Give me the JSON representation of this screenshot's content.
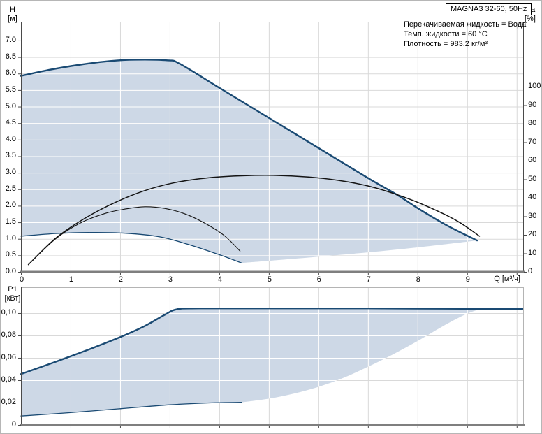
{
  "header": {
    "title_box": "MAGNA3 32-60, 50Hz",
    "info_lines": [
      "Перекачиваемая жидкость = Вода",
      "Темп. жидкости = 60 °C",
      "Плотность = 983.2 кг/м³"
    ]
  },
  "colors": {
    "curve_blue": "#1a4a73",
    "fill_blue": "#cdd8e6",
    "curve_black": "#141414",
    "grid_gray": "#d9d9d9",
    "grid_white": "#ffffff",
    "axis_dark": "#4a4a4a",
    "axis_thick": "#7f7f7f",
    "frame_light": "#b4b4b4"
  },
  "chart_data": [
    {
      "type": "area",
      "id": "head",
      "title": "MAGNA3 32-60, 50Hz",
      "xlabel": "Q [м³/ч]",
      "ylabel_left_lines": [
        "H",
        "[м]"
      ],
      "ylabel_right_lines": [
        "eta",
        "[%]"
      ],
      "xlim": [
        0,
        10.13
      ],
      "ylim": [
        0,
        7.57
      ],
      "ylim_right": [
        0,
        135.1
      ],
      "grid": true,
      "x_ticks": [
        {
          "v": 0,
          "l": "0"
        },
        {
          "v": 1,
          "l": "1"
        },
        {
          "v": 2,
          "l": "2"
        },
        {
          "v": 3,
          "l": "3"
        },
        {
          "v": 4,
          "l": "4"
        },
        {
          "v": 5,
          "l": "5"
        },
        {
          "v": 6,
          "l": "6"
        },
        {
          "v": 7,
          "l": "7"
        },
        {
          "v": 8,
          "l": "8"
        },
        {
          "v": 9,
          "l": "9"
        },
        {
          "v": 10,
          "l": ""
        }
      ],
      "y_left_ticks": [
        {
          "v": 0,
          "l": "0.0"
        },
        {
          "v": 0.5,
          "l": "0.5"
        },
        {
          "v": 1,
          "l": "1.0"
        },
        {
          "v": 1.5,
          "l": "1.5"
        },
        {
          "v": 2,
          "l": "2.0"
        },
        {
          "v": 2.5,
          "l": "2.5"
        },
        {
          "v": 3,
          "l": "3.0"
        },
        {
          "v": 3.5,
          "l": "3.5"
        },
        {
          "v": 4,
          "l": "4.0"
        },
        {
          "v": 4.5,
          "l": "4.5"
        },
        {
          "v": 5,
          "l": "5.0"
        },
        {
          "v": 5.5,
          "l": "5.5"
        },
        {
          "v": 6,
          "l": "6.0"
        },
        {
          "v": 6.5,
          "l": "6.5"
        },
        {
          "v": 7,
          "l": "7.0"
        }
      ],
      "y_right_ticks": [
        {
          "v": 0,
          "l": "0"
        },
        {
          "v": 10,
          "l": "10"
        },
        {
          "v": 20,
          "l": "20"
        },
        {
          "v": 30,
          "l": "30"
        },
        {
          "v": 40,
          "l": "40"
        },
        {
          "v": 50,
          "l": "50"
        },
        {
          "v": 60,
          "l": "60"
        },
        {
          "v": 70,
          "l": "70"
        },
        {
          "v": 80,
          "l": "80"
        },
        {
          "v": 90,
          "l": "90"
        },
        {
          "v": 100,
          "l": "100"
        }
      ],
      "series": [
        {
          "name": "max-speed-head-curve",
          "color_key": "curve_blue",
          "width": 2.4,
          "smooth": true,
          "points": [
            [
              0,
              5.93
            ],
            [
              0.6,
              6.12
            ],
            [
              1.2,
              6.27
            ],
            [
              1.8,
              6.38
            ],
            [
              2.3,
              6.42
            ],
            [
              2.95,
              6.4
            ],
            [
              3.2,
              6.3
            ],
            [
              4.0,
              5.57
            ],
            [
              5.0,
              4.66
            ],
            [
              6.0,
              3.75
            ],
            [
              7.0,
              2.84
            ],
            [
              7.6,
              2.32
            ],
            [
              8.0,
              1.93
            ],
            [
              8.6,
              1.4
            ],
            [
              9.2,
              0.95
            ]
          ]
        },
        {
          "name": "min-speed-head-curve",
          "color_key": "curve_blue",
          "width": 1.3,
          "smooth": true,
          "points": [
            [
              0,
              1.08
            ],
            [
              0.7,
              1.16
            ],
            [
              1.4,
              1.19
            ],
            [
              2.1,
              1.17
            ],
            [
              2.8,
              1.06
            ],
            [
              3.4,
              0.82
            ],
            [
              4.0,
              0.52
            ],
            [
              4.45,
              0.27
            ]
          ]
        },
        {
          "name": "eta-curve-max-speed",
          "color_key": "curve_black",
          "width": 1.5,
          "smooth": true,
          "points": [
            [
              0.15,
              0.22
            ],
            [
              0.7,
              1.02
            ],
            [
              1.3,
              1.63
            ],
            [
              1.9,
              2.1
            ],
            [
              2.5,
              2.46
            ],
            [
              3.1,
              2.7
            ],
            [
              3.8,
              2.85
            ],
            [
              4.5,
              2.91
            ],
            [
              5.1,
              2.92
            ],
            [
              5.8,
              2.87
            ],
            [
              6.4,
              2.77
            ],
            [
              7.0,
              2.6
            ],
            [
              7.6,
              2.33
            ],
            [
              8.2,
              1.98
            ],
            [
              8.8,
              1.54
            ],
            [
              9.25,
              1.08
            ]
          ]
        },
        {
          "name": "eta-curve-min-speed",
          "color_key": "curve_black",
          "width": 1.1,
          "smooth": true,
          "points": [
            [
              0.15,
              0.22
            ],
            [
              0.7,
              1.0
            ],
            [
              1.2,
              1.48
            ],
            [
              1.7,
              1.77
            ],
            [
              2.1,
              1.9
            ],
            [
              2.5,
              1.97
            ],
            [
              2.9,
              1.92
            ],
            [
              3.3,
              1.76
            ],
            [
              3.7,
              1.48
            ],
            [
              4.1,
              1.1
            ],
            [
              4.42,
              0.63
            ]
          ]
        }
      ],
      "area": {
        "name": "duty-range-envelope",
        "upper_points": [
          [
            0,
            5.93
          ],
          [
            0.6,
            6.12
          ],
          [
            1.2,
            6.27
          ],
          [
            1.8,
            6.38
          ],
          [
            2.3,
            6.42
          ],
          [
            2.95,
            6.4
          ],
          [
            3.2,
            6.3
          ],
          [
            4.0,
            5.57
          ],
          [
            5.0,
            4.66
          ],
          [
            6.0,
            3.75
          ],
          [
            7.0,
            2.84
          ],
          [
            7.6,
            2.32
          ],
          [
            8.0,
            1.93
          ],
          [
            8.6,
            1.4
          ],
          [
            9.2,
            0.95
          ]
        ],
        "right_points": [
          [
            4.45,
            0.27
          ],
          [
            5.2,
            0.36
          ],
          [
            6.0,
            0.46
          ],
          [
            7.0,
            0.59
          ],
          [
            8.0,
            0.74
          ],
          [
            9.2,
            0.95
          ]
        ],
        "lower_points": [
          [
            0,
            1.08
          ],
          [
            0.7,
            1.16
          ],
          [
            1.4,
            1.19
          ],
          [
            2.1,
            1.17
          ],
          [
            2.8,
            1.06
          ],
          [
            3.4,
            0.82
          ],
          [
            4.0,
            0.52
          ],
          [
            4.45,
            0.27
          ]
        ]
      }
    },
    {
      "type": "area",
      "id": "power",
      "xlabel": "",
      "ylabel_left_lines": [
        "P1",
        "[кВт]"
      ],
      "xlim": [
        0,
        10.13
      ],
      "ylim": [
        0,
        0.1231
      ],
      "grid": true,
      "x_ticks": [
        {
          "v": 1,
          "l": ""
        },
        {
          "v": 2,
          "l": ""
        },
        {
          "v": 3,
          "l": ""
        },
        {
          "v": 4,
          "l": ""
        },
        {
          "v": 5,
          "l": ""
        },
        {
          "v": 6,
          "l": ""
        },
        {
          "v": 7,
          "l": ""
        },
        {
          "v": 8,
          "l": ""
        },
        {
          "v": 9,
          "l": ""
        },
        {
          "v": 10,
          "l": ""
        }
      ],
      "y_left_ticks": [
        {
          "v": 0,
          "l": "0"
        },
        {
          "v": 0.02,
          "l": "0,02"
        },
        {
          "v": 0.04,
          "l": "0,04"
        },
        {
          "v": 0.06,
          "l": "0,06"
        },
        {
          "v": 0.08,
          "l": "0,08"
        },
        {
          "v": 0.1,
          "l": "0,10"
        }
      ],
      "series": [
        {
          "name": "p1-max-speed-curve",
          "color_key": "curve_blue",
          "width": 2.4,
          "smooth": true,
          "points": [
            [
              0,
              0.0455
            ],
            [
              0.7,
              0.0565
            ],
            [
              1.4,
              0.068
            ],
            [
              2.0,
              0.0785
            ],
            [
              2.5,
              0.0885
            ],
            [
              2.9,
              0.0985
            ],
            [
              3.15,
              0.1035
            ],
            [
              3.6,
              0.1042
            ],
            [
              5.0,
              0.1042
            ],
            [
              7.0,
              0.1042
            ],
            [
              9.3,
              0.1038
            ],
            [
              10.12,
              0.1038
            ]
          ]
        },
        {
          "name": "p1-min-speed-curve",
          "color_key": "curve_blue",
          "width": 1.3,
          "smooth": true,
          "points": [
            [
              0,
              0.008
            ],
            [
              1.0,
              0.011
            ],
            [
              2.0,
              0.0145
            ],
            [
              3.0,
              0.018
            ],
            [
              3.8,
              0.0197
            ],
            [
              4.45,
              0.0202
            ]
          ]
        }
      ],
      "area": {
        "name": "power-range-envelope",
        "upper_points": [
          [
            0,
            0.0455
          ],
          [
            0.7,
            0.0565
          ],
          [
            1.4,
            0.068
          ],
          [
            2.0,
            0.0785
          ],
          [
            2.5,
            0.0885
          ],
          [
            2.9,
            0.0985
          ],
          [
            3.15,
            0.1035
          ],
          [
            3.6,
            0.1042
          ],
          [
            5.0,
            0.1042
          ],
          [
            7.0,
            0.1042
          ],
          [
            9.3,
            0.1038
          ]
        ],
        "right_points": [
          [
            4.45,
            0.0202
          ],
          [
            5.0,
            0.0235
          ],
          [
            5.5,
            0.028
          ],
          [
            6.0,
            0.034
          ],
          [
            6.5,
            0.042
          ],
          [
            7.0,
            0.052
          ],
          [
            7.5,
            0.063
          ],
          [
            8.0,
            0.075
          ],
          [
            8.5,
            0.088
          ],
          [
            9.0,
            0.0995
          ],
          [
            9.3,
            0.1038
          ]
        ],
        "lower_points": [
          [
            0,
            0.008
          ],
          [
            1.0,
            0.011
          ],
          [
            2.0,
            0.0145
          ],
          [
            3.0,
            0.018
          ],
          [
            3.8,
            0.0197
          ],
          [
            4.45,
            0.0202
          ]
        ]
      }
    }
  ]
}
